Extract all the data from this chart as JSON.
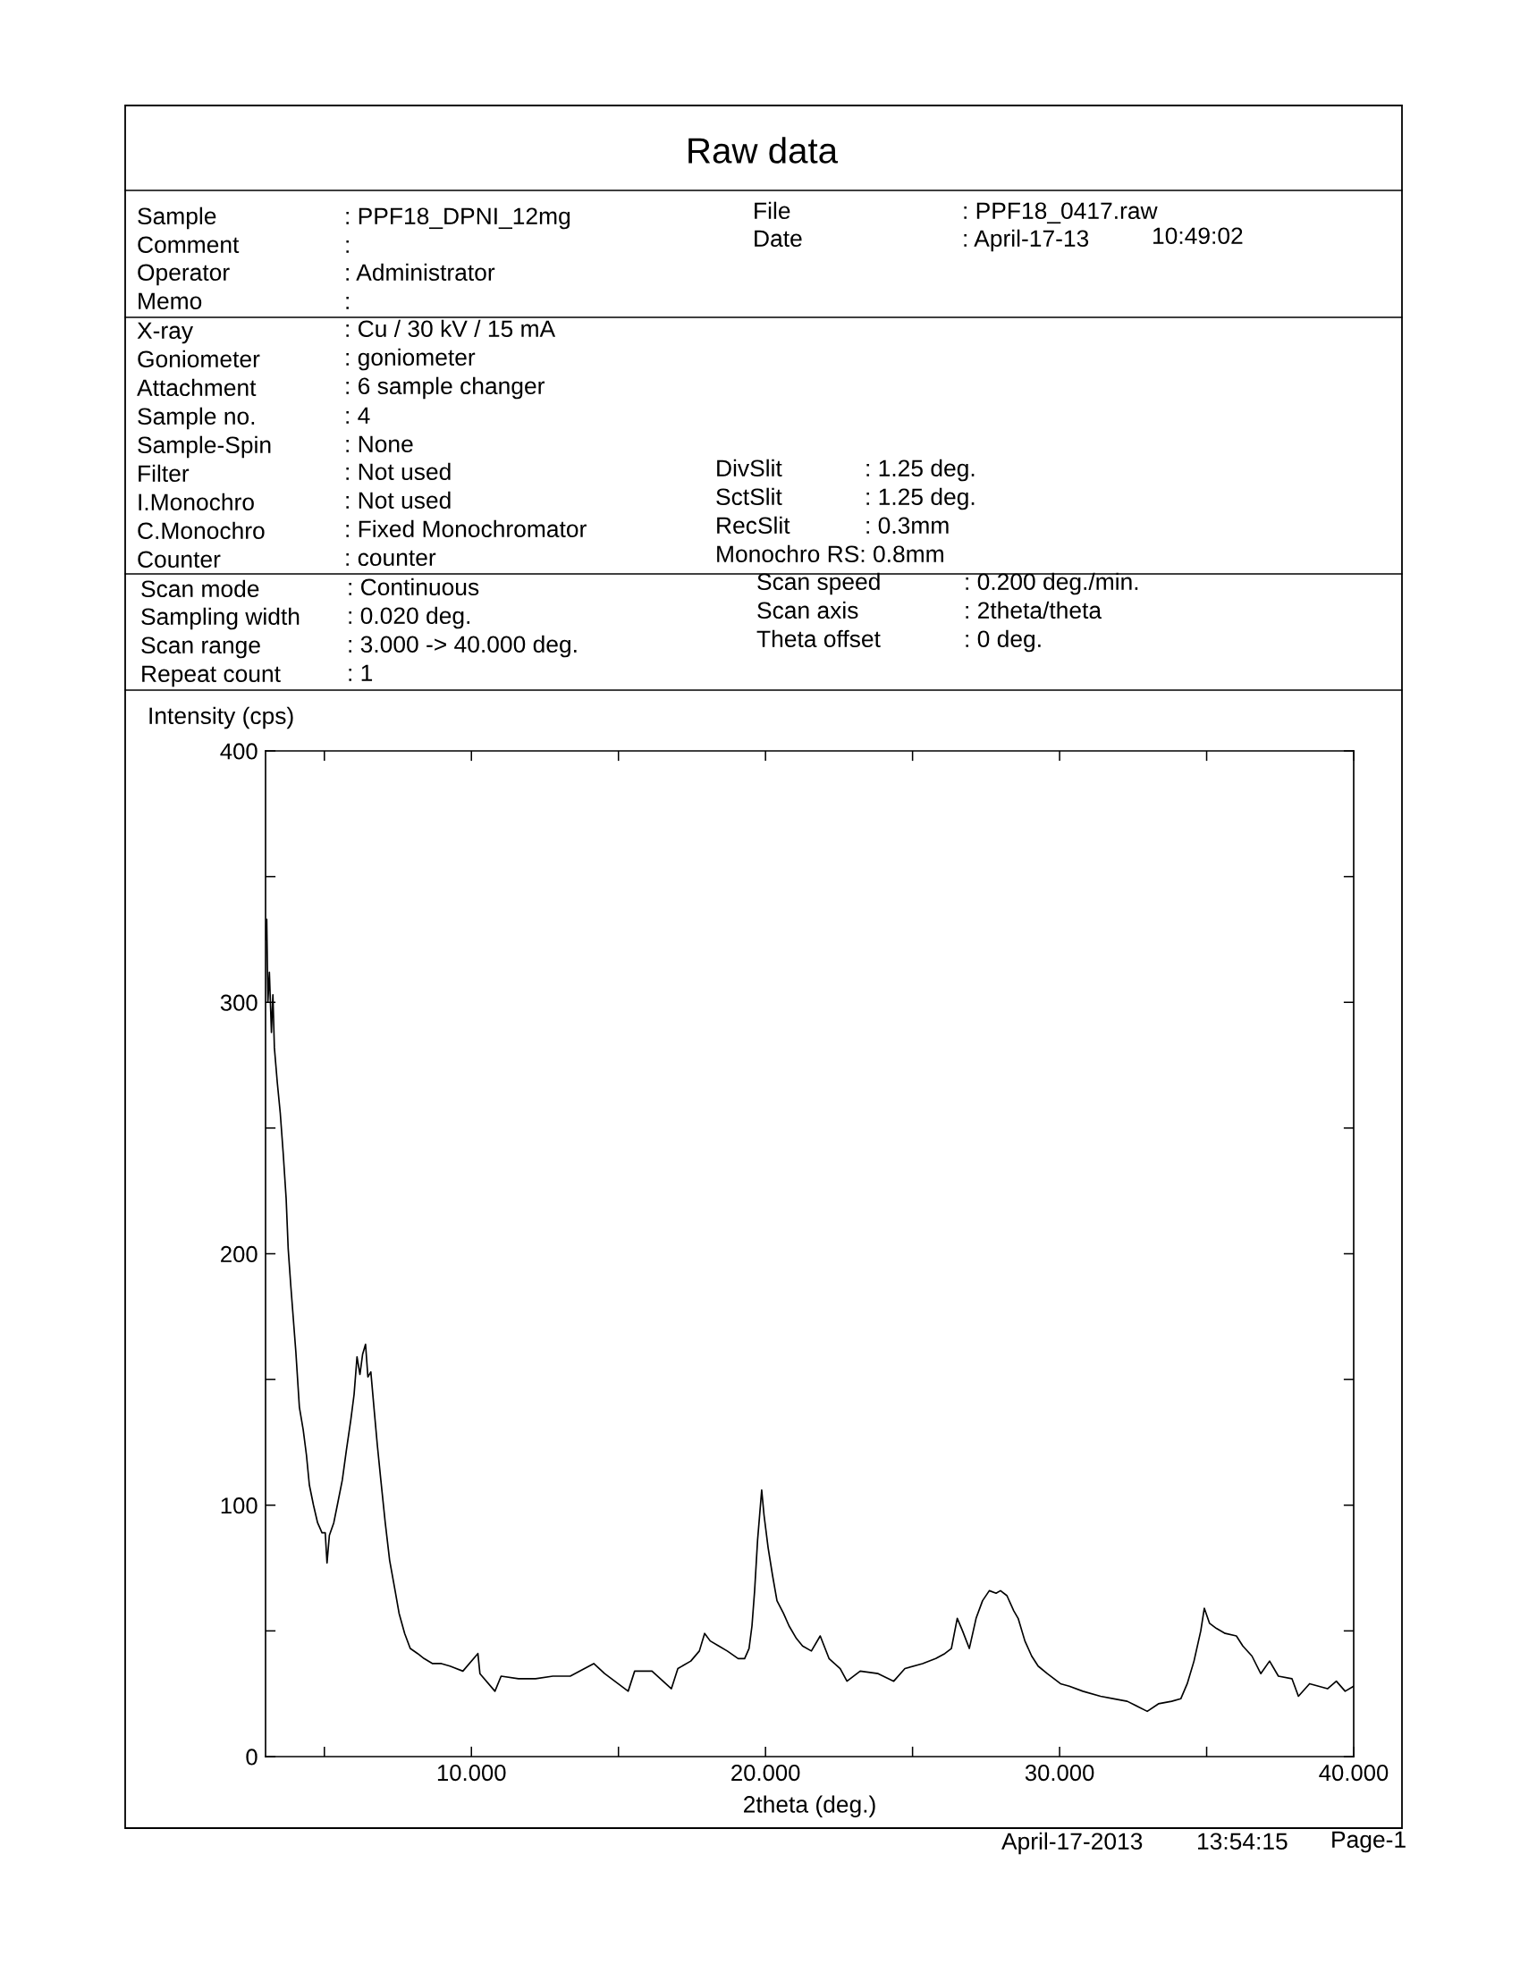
{
  "chart_data": {
    "type": "line",
    "title": "Raw data",
    "xlabel": "2theta (deg.)",
    "ylabel": "Intensity (cps)",
    "annotations": [
      "Sample",
      ": PPF18_DPNI_12mg",
      "Comment",
      ":",
      "Operator",
      ": Administrator",
      "Memo",
      ":",
      "File",
      ": PPF18_0417.raw",
      "Date",
      ": April-17-13",
      "10:49:02",
      "X-ray",
      ": Cu / 30 kV / 15 mA",
      "Goniometer",
      ": goniometer",
      "Attachment",
      ": 6 sample changer",
      "Sample no.",
      ": 4",
      "Sample-Spin",
      ": None",
      "Filter",
      ": Not used",
      "I.Monochro",
      ": Not used",
      "C.Monochro",
      ": Fixed Monochromator",
      "Counter",
      ": counter",
      "DivSlit",
      ": 1.25 deg.",
      "SctSlit",
      ": 1.25 deg.",
      "RecSlit",
      ": 0.3mm",
      "Monochro RS: 0.8mm",
      "Scan mode",
      ": Continuous",
      "Sampling width",
      ": 0.020 deg.",
      "Scan range",
      ": 3.000 -> 40.000 deg.",
      "Repeat count",
      ": 1",
      "Scan speed",
      ": 0.200 deg./min.",
      "Scan axis",
      ": 2theta/theta",
      "Theta offset",
      ": 0 deg.",
      "April-17-2013",
      "13:54:15",
      "Page-1"
    ],
    "color": "#000000",
    "x": [
      3.0,
      3.04,
      3.08,
      3.13,
      3.2,
      3.25,
      3.3,
      3.4,
      3.5,
      3.6,
      3.7,
      3.77,
      3.86,
      4.03,
      4.15,
      4.28,
      4.39,
      4.49,
      4.63,
      4.77,
      4.92,
      5.03,
      5.09,
      5.17,
      5.32,
      5.44,
      5.61,
      5.75,
      5.9,
      6.01,
      6.11,
      6.21,
      6.3,
      6.4,
      6.48,
      6.58,
      6.7,
      6.8,
      6.92,
      7.07,
      7.22,
      7.39,
      7.54,
      7.73,
      7.92,
      8.17,
      8.39,
      8.68,
      8.98,
      9.27,
      9.71,
      10.22,
      10.29,
      10.8,
      11.01,
      11.6,
      12.18,
      12.77,
      13.36,
      14.16,
      14.53,
      15.33,
      15.55,
      16.14,
      16.8,
      17.02,
      17.46,
      17.75,
      17.93,
      18.12,
      18.41,
      18.7,
      19.07,
      19.29,
      19.44,
      19.54,
      19.63,
      19.73,
      19.8,
      19.87,
      19.95,
      20.09,
      20.24,
      20.39,
      20.61,
      20.8,
      21.05,
      21.26,
      21.56,
      21.86,
      22.16,
      22.54,
      22.77,
      23.22,
      23.83,
      24.36,
      24.74,
      25.34,
      25.79,
      26.1,
      26.32,
      26.52,
      26.7,
      26.93,
      27.16,
      27.38,
      27.61,
      27.84,
      27.99,
      28.21,
      28.44,
      28.59,
      28.82,
      29.05,
      29.27,
      29.58,
      30.03,
      30.33,
      30.79,
      31.39,
      31.85,
      32.3,
      32.98,
      33.36,
      33.81,
      34.12,
      34.34,
      34.57,
      34.8,
      34.92,
      35.1,
      35.33,
      35.63,
      36.01,
      36.23,
      36.54,
      36.84,
      37.14,
      37.44,
      37.9,
      38.12,
      38.5,
      39.11,
      39.41,
      39.71,
      40.0
    ],
    "values": [
      325,
      333,
      300,
      312,
      288,
      303,
      282,
      268,
      256,
      240,
      222,
      202,
      187,
      161,
      139,
      130,
      120,
      108,
      100,
      93,
      89,
      89,
      77,
      88,
      93,
      100,
      110,
      122,
      134,
      144,
      159,
      152,
      160,
      164,
      151,
      153,
      137,
      124,
      110,
      93,
      78,
      67,
      57,
      49,
      43,
      41,
      39,
      37,
      37,
      36,
      34,
      41,
      33,
      26,
      32,
      31,
      31,
      32,
      32,
      37,
      33,
      26,
      34,
      34,
      27,
      35,
      38,
      42,
      49,
      46,
      44,
      42,
      39,
      39,
      43,
      52,
      66,
      86,
      96,
      106,
      96,
      83,
      72,
      62,
      57,
      52,
      47,
      44,
      42,
      48,
      39,
      35,
      30,
      34,
      33,
      30,
      35,
      37,
      39,
      41,
      43,
      55,
      50,
      43,
      55,
      62,
      66,
      65,
      66,
      64,
      58,
      55,
      46,
      40,
      36,
      33,
      29,
      28,
      26,
      24,
      23,
      22,
      18,
      21,
      22,
      23,
      29,
      38,
      50,
      59,
      53,
      51,
      49,
      48,
      44,
      40,
      33,
      38,
      32,
      31,
      24,
      29,
      27,
      30,
      26,
      28
    ],
    "xlim": [
      3,
      40
    ],
    "ylim": [
      0,
      400
    ],
    "xticks": [
      {
        "value": 5,
        "label": null
      },
      {
        "value": 10,
        "label": "10.000"
      },
      {
        "value": 15,
        "label": null
      },
      {
        "value": 20,
        "label": "20.000"
      },
      {
        "value": 25,
        "label": null
      },
      {
        "value": 30,
        "label": "30.000"
      },
      {
        "value": 35,
        "label": null
      },
      {
        "value": 40,
        "label": "40.000"
      }
    ],
    "yticks": [
      0,
      {
        "value": 50,
        "label": null
      },
      100,
      {
        "value": 150,
        "label": null
      },
      200,
      {
        "value": 250,
        "label": null
      },
      300,
      {
        "value": 350,
        "label": null
      },
      400
    ]
  }
}
